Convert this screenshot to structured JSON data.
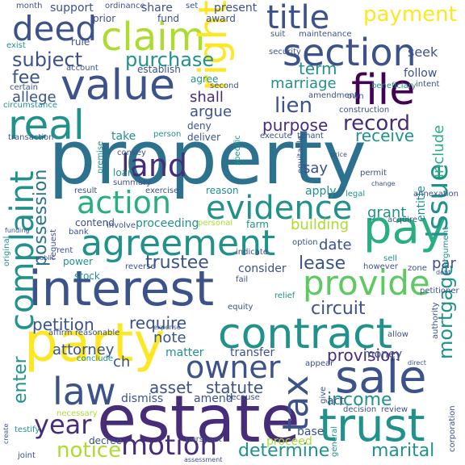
{
  "palette": {
    "deep_purple": "#440154",
    "purple": "#472c7a",
    "indigo": "#3b528b",
    "blue": "#2c728e",
    "teal": "#21918c",
    "sea_green": "#28ae80",
    "green": "#5ec962",
    "lime": "#addc30",
    "yellow": "#fde725"
  },
  "words": [
    {
      "text": "property",
      "color": "blue"
    },
    {
      "text": "estate",
      "color": "purple"
    },
    {
      "text": "interest",
      "color": "indigo"
    },
    {
      "text": "party",
      "color": "yellow"
    },
    {
      "text": "contract",
      "color": "teal"
    },
    {
      "text": "value",
      "color": "indigo"
    },
    {
      "text": "agreement",
      "color": "teal"
    },
    {
      "text": "section",
      "color": "indigo"
    },
    {
      "text": "claim",
      "color": "lime"
    },
    {
      "text": "file",
      "color": "deep_purple"
    },
    {
      "text": "pay",
      "color": "sea_green"
    },
    {
      "text": "right",
      "color": "yellow"
    },
    {
      "text": "sale",
      "color": "indigo"
    },
    {
      "text": "trust",
      "color": "teal"
    },
    {
      "text": "provide",
      "color": "green"
    },
    {
      "text": "evidence",
      "color": "teal"
    },
    {
      "text": "action",
      "color": "sea_green"
    },
    {
      "text": "real",
      "color": "teal"
    },
    {
      "text": "deed",
      "color": "indigo"
    },
    {
      "text": "title",
      "color": "indigo"
    },
    {
      "text": "law",
      "color": "indigo"
    },
    {
      "text": "motion",
      "color": "purple"
    },
    {
      "text": "owner",
      "color": "indigo"
    },
    {
      "text": "complaint",
      "color": "teal"
    },
    {
      "text": "issue",
      "color": "teal"
    },
    {
      "text": "tax",
      "color": "indigo"
    },
    {
      "text": "land",
      "color": "purple"
    },
    {
      "text": "year",
      "color": "purple"
    },
    {
      "text": "payment",
      "color": "yellow"
    },
    {
      "text": "subject",
      "color": "indigo"
    },
    {
      "text": "purchase",
      "color": "teal"
    },
    {
      "text": "mortgage",
      "color": "teal"
    },
    {
      "text": "notice",
      "color": "lime"
    },
    {
      "text": "record",
      "color": "purple"
    },
    {
      "text": "lien",
      "color": "indigo"
    },
    {
      "text": "purpose",
      "color": "purple"
    },
    {
      "text": "trustee",
      "color": "indigo"
    },
    {
      "text": "income",
      "color": "teal"
    },
    {
      "text": "determine",
      "color": "teal"
    },
    {
      "text": "marital",
      "color": "teal"
    },
    {
      "text": "petition",
      "color": "indigo"
    },
    {
      "text": "require",
      "color": "indigo"
    },
    {
      "text": "circuit",
      "color": "indigo"
    },
    {
      "text": "provision",
      "color": "purple"
    },
    {
      "text": "possession",
      "color": "blue"
    },
    {
      "text": "enter",
      "color": "teal"
    },
    {
      "text": "lease",
      "color": "indigo"
    },
    {
      "text": "attorney",
      "color": "indigo"
    },
    {
      "text": "marriage",
      "color": "teal"
    },
    {
      "text": "term",
      "color": "teal"
    },
    {
      "text": "fee",
      "color": "indigo"
    },
    {
      "text": "allege",
      "color": "indigo"
    },
    {
      "text": "argue",
      "color": "indigo"
    },
    {
      "text": "shall",
      "color": "purple"
    },
    {
      "text": "receive",
      "color": "teal"
    },
    {
      "text": "include",
      "color": "sea_green"
    },
    {
      "text": "building",
      "color": "lime"
    },
    {
      "text": "asset",
      "color": "indigo"
    },
    {
      "text": "statute",
      "color": "indigo"
    },
    {
      "text": "date",
      "color": "indigo"
    },
    {
      "text": "grant",
      "color": "teal"
    },
    {
      "text": "note",
      "color": "indigo"
    },
    {
      "text": "say",
      "color": "indigo"
    },
    {
      "text": "par",
      "color": "indigo"
    },
    {
      "text": "ch",
      "color": "indigo"
    },
    {
      "text": "seek",
      "color": "indigo"
    },
    {
      "text": "follow",
      "color": "indigo"
    },
    {
      "text": "apply",
      "color": "teal"
    },
    {
      "text": "entitle",
      "color": "teal"
    },
    {
      "text": "take",
      "color": "teal"
    },
    {
      "text": "dismiss",
      "color": "indigo"
    },
    {
      "text": "amend",
      "color": "indigo"
    },
    {
      "text": "consider",
      "color": "indigo"
    },
    {
      "text": "proceeding",
      "color": "teal"
    },
    {
      "text": "act",
      "color": "indigo"
    },
    {
      "text": "base",
      "color": "indigo"
    },
    {
      "text": "money",
      "color": "indigo"
    },
    {
      "text": "proceed",
      "color": "lime"
    },
    {
      "text": "matter",
      "color": "teal"
    },
    {
      "text": "transfer",
      "color": "indigo"
    },
    {
      "text": "support",
      "color": "indigo"
    },
    {
      "text": "share",
      "color": "indigo"
    },
    {
      "text": "present",
      "color": "indigo"
    },
    {
      "text": "award",
      "color": "indigo"
    },
    {
      "text": "fund",
      "color": "indigo"
    },
    {
      "text": "prior",
      "color": "indigo"
    },
    {
      "text": "rule",
      "color": "indigo"
    },
    {
      "text": "exist",
      "color": "teal"
    },
    {
      "text": "account",
      "color": "indigo"
    },
    {
      "text": "establish",
      "color": "indigo"
    },
    {
      "text": "agree",
      "color": "teal"
    },
    {
      "text": "certain",
      "color": "indigo"
    },
    {
      "text": "circumstance",
      "color": "teal"
    },
    {
      "text": "transaction",
      "color": "indigo"
    },
    {
      "text": "deny",
      "color": "indigo"
    },
    {
      "text": "person",
      "color": "teal"
    },
    {
      "text": "deliver",
      "color": "indigo"
    },
    {
      "text": "convey",
      "color": "indigo"
    },
    {
      "text": "exercise",
      "color": "indigo"
    },
    {
      "text": "reason",
      "color": "teal"
    },
    {
      "text": "loan",
      "color": "teal"
    },
    {
      "text": "summary",
      "color": "indigo"
    },
    {
      "text": "contend",
      "color": "indigo"
    },
    {
      "text": "involve",
      "color": "indigo"
    },
    {
      "text": "bank",
      "color": "indigo"
    },
    {
      "text": "farm",
      "color": "teal"
    },
    {
      "text": "acquire",
      "color": "indigo"
    },
    {
      "text": "rent",
      "color": "indigo"
    },
    {
      "text": "power",
      "color": "teal"
    },
    {
      "text": "stock",
      "color": "teal"
    },
    {
      "text": "sell",
      "color": "teal"
    },
    {
      "text": "zone",
      "color": "indigo"
    },
    {
      "text": "however",
      "color": "indigo"
    },
    {
      "text": "appear",
      "color": "indigo"
    },
    {
      "text": "decision",
      "color": "indigo"
    },
    {
      "text": "review",
      "color": "indigo"
    },
    {
      "text": "give",
      "color": "indigo"
    },
    {
      "text": "necessary",
      "color": "lime"
    },
    {
      "text": "because",
      "color": "indigo"
    },
    {
      "text": "decree",
      "color": "indigo"
    },
    {
      "text": "joint",
      "color": "indigo"
    },
    {
      "text": "testify",
      "color": "teal"
    },
    {
      "text": "conclude",
      "color": "teal"
    },
    {
      "text": "affirm",
      "color": "indigo"
    },
    {
      "text": "reasonable",
      "color": "indigo"
    },
    {
      "text": "request",
      "color": "indigo"
    },
    {
      "text": "original",
      "color": "teal"
    },
    {
      "text": "legal",
      "color": "teal"
    },
    {
      "text": "permit",
      "color": "indigo"
    },
    {
      "text": "construction",
      "color": "indigo"
    },
    {
      "text": "amendment",
      "color": "indigo"
    },
    {
      "text": "maintenance",
      "color": "indigo"
    },
    {
      "text": "suit",
      "color": "indigo"
    },
    {
      "text": "security",
      "color": "indigo"
    },
    {
      "text": "month",
      "color": "indigo"
    },
    {
      "text": "ordinance",
      "color": "indigo"
    },
    {
      "text": "set",
      "color": "indigo"
    },
    {
      "text": "second",
      "color": "indigo"
    },
    {
      "text": "specific",
      "color": "teal"
    },
    {
      "text": "execute",
      "color": "indigo"
    },
    {
      "text": "tenant",
      "color": "indigo"
    },
    {
      "text": "equitable",
      "color": "indigo"
    },
    {
      "text": "premise",
      "color": "teal"
    },
    {
      "text": "result",
      "color": "indigo"
    },
    {
      "text": "personal",
      "color": "lime"
    },
    {
      "text": "authority",
      "color": "indigo"
    },
    {
      "text": "argument",
      "color": "teal"
    },
    {
      "text": "petitioner",
      "color": "indigo"
    },
    {
      "text": "option",
      "color": "indigo"
    },
    {
      "text": "indicate",
      "color": "indigo"
    },
    {
      "text": "reverse",
      "color": "indigo"
    },
    {
      "text": "fail",
      "color": "indigo"
    },
    {
      "text": "relief",
      "color": "teal"
    },
    {
      "text": "equity",
      "color": "indigo"
    },
    {
      "text": "beneficiary",
      "color": "teal"
    },
    {
      "text": "intent",
      "color": "indigo"
    },
    {
      "text": "own",
      "color": "indigo"
    },
    {
      "text": "annexation",
      "color": "indigo"
    },
    {
      "text": "corporation",
      "color": "indigo"
    },
    {
      "text": "general",
      "color": "teal"
    },
    {
      "text": "pursuant",
      "color": "indigo"
    },
    {
      "text": "assessment",
      "color": "indigo"
    },
    {
      "text": "funding",
      "color": "indigo"
    },
    {
      "text": "public",
      "color": "indigo"
    },
    {
      "text": "expense",
      "color": "indigo"
    },
    {
      "text": "allow",
      "color": "indigo"
    },
    {
      "text": "direct",
      "color": "indigo"
    },
    {
      "text": "debt",
      "color": "indigo"
    },
    {
      "text": "price",
      "color": "indigo"
    },
    {
      "text": "change",
      "color": "indigo"
    },
    {
      "text": "create",
      "color": "indigo"
    }
  ]
}
